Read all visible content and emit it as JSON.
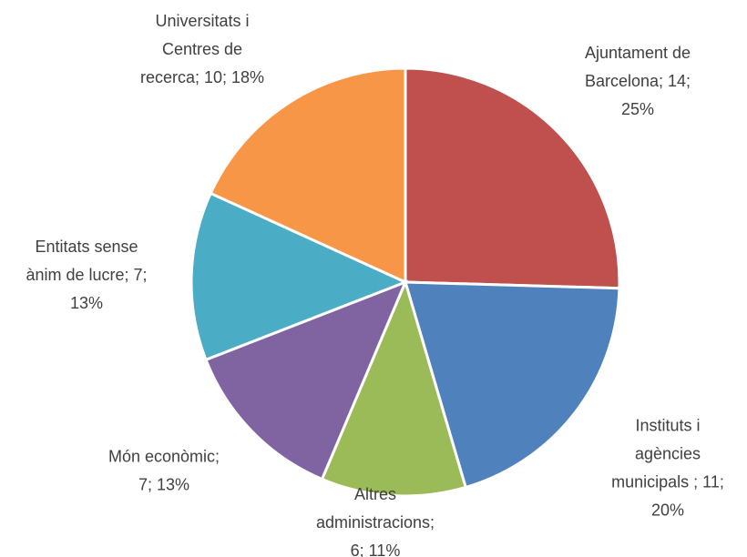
{
  "chart_data": {
    "type": "pie",
    "values": [
      14,
      11,
      6,
      7,
      7,
      10
    ],
    "value_labels": [
      "Ajuntament de Barcelona; 14; 25%",
      "Instituts i agències municipals ; 11; 20%",
      "Altres administracions; 6; 11%",
      "Món econòmic; 7; 13%",
      "Entitats sense ànim de lucre; 7; 13%",
      "Universitats i Centres de recerca; 10; 18%"
    ],
    "colors": [
      "#c0504d",
      "#4f81bd",
      "#9bbb59",
      "#8064a2",
      "#4bacc6",
      "#f79646"
    ]
  }
}
